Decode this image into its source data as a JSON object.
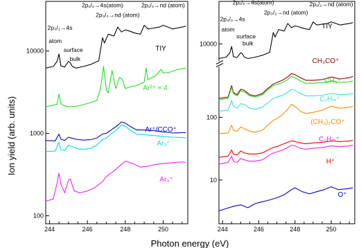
{
  "figure": {
    "xlabel": "Photon energy (eV)",
    "ylabel": "Ion yield (arb. units)"
  },
  "chart_data": [
    {
      "type": "line",
      "panel": "left",
      "yscale": "log",
      "xlim": [
        243.8,
        251.3
      ],
      "ylim": [
        80,
        40000
      ],
      "x_ticks": [
        244,
        246,
        248,
        250
      ],
      "x_tick_labels": [
        "244",
        "246",
        "248",
        "250"
      ],
      "y_ticks": [
        100,
        1000,
        10000
      ],
      "y_tick_labels": [
        "100",
        "1000",
        "10000"
      ],
      "annotations": [
        {
          "id": "l-ann-p12-4s",
          "text": "2p₁/₂→4s(atom)",
          "x": 246.8,
          "y": 34000
        },
        {
          "id": "l-ann-p32-4s",
          "text": "2p₃/₂→4s",
          "x": 244.55,
          "y": 18000
        },
        {
          "id": "l-ann-atom",
          "text": "atom",
          "x": 244.3,
          "y": 12500
        },
        {
          "id": "l-ann-surface",
          "text": "surface",
          "x": 245.25,
          "y": 9700
        },
        {
          "id": "l-ann-bulk",
          "text": "bulk",
          "x": 245.35,
          "y": 7600
        },
        {
          "id": "l-ann-p32-nd",
          "text": "2p₃/₂→nd (atom)",
          "x": 247.6,
          "y": 26000
        },
        {
          "id": "l-ann-p12-nd",
          "text": "2p₁/₂→nd (atom)",
          "x": 250.0,
          "y": 34000
        }
      ],
      "series": [
        {
          "name": "TIY",
          "color": "#000000",
          "x": [
            243.8,
            244.2,
            244.4,
            244.5,
            244.6,
            244.8,
            245.0,
            245.1,
            245.2,
            245.4,
            245.8,
            246.2,
            246.6,
            246.8,
            246.9,
            247.1,
            247.4,
            247.6,
            247.8,
            248.0,
            248.2,
            248.5,
            248.8,
            249.0,
            249.2,
            249.5,
            249.8,
            250.0,
            250.5,
            251.0,
            251.2
          ],
          "y": [
            6200,
            6500,
            7500,
            9200,
            6600,
            6400,
            7500,
            7200,
            6500,
            6200,
            6500,
            6900,
            7600,
            14500,
            12500,
            16000,
            15200,
            19500,
            17000,
            18000,
            17500,
            16500,
            16000,
            20500,
            18500,
            19000,
            19500,
            20500,
            18500,
            19500,
            20000
          ]
        },
        {
          "name": "Ar²⁺ × 4",
          "color": "#22dd22",
          "x": [
            243.8,
            244.4,
            244.5,
            244.6,
            244.7,
            245.0,
            245.5,
            246.0,
            246.5,
            246.7,
            246.85,
            247.0,
            247.1,
            247.3,
            247.5,
            247.7,
            247.85,
            248.0,
            248.3,
            248.6,
            249.0,
            249.1,
            249.2,
            249.6,
            249.9,
            250.0,
            250.3,
            250.7,
            251.2
          ],
          "y": [
            2100,
            2250,
            3000,
            2300,
            2200,
            2100,
            2150,
            2300,
            2500,
            3600,
            6500,
            3400,
            3100,
            5800,
            3500,
            4800,
            4500,
            3500,
            3700,
            3800,
            4200,
            6200,
            4500,
            5000,
            6000,
            5400,
            5500,
            5900,
            6200
          ]
        },
        {
          "name": "Ar⁺/CCO⁺",
          "color": "#0000bb",
          "x": [
            243.8,
            244.3,
            244.5,
            244.6,
            244.8,
            245.0,
            245.2,
            245.5,
            245.8,
            246.2,
            246.5,
            246.8,
            247.0,
            247.3,
            247.6,
            247.8,
            248.0,
            248.3,
            248.6,
            249.0,
            249.5,
            250.0,
            250.5,
            251.0,
            251.2
          ],
          "y": [
            820,
            810,
            980,
            850,
            820,
            900,
            870,
            840,
            830,
            840,
            880,
            980,
            1000,
            1120,
            1250,
            1380,
            1330,
            1200,
            1100,
            1100,
            1080,
            1040,
            1010,
            1020,
            1020
          ]
        },
        {
          "name": "Ar₂⁺",
          "color": "#00dddd",
          "x": [
            243.8,
            244.3,
            244.5,
            244.6,
            244.8,
            245.0,
            245.2,
            245.5,
            245.8,
            246.2,
            246.5,
            246.8,
            247.0,
            247.3,
            247.6,
            247.8,
            248.0,
            248.3,
            248.6,
            249.0,
            249.5,
            250.0,
            250.5,
            251.0,
            251.2
          ],
          "y": [
            600,
            610,
            780,
            640,
            620,
            720,
            690,
            650,
            640,
            660,
            720,
            840,
            880,
            1000,
            1130,
            1270,
            1220,
            1080,
            980,
            960,
            940,
            920,
            900,
            890,
            880
          ]
        },
        {
          "name": "Ar₃⁺",
          "color": "#ee22ee",
          "x": [
            243.8,
            244.2,
            244.4,
            244.5,
            244.6,
            244.8,
            245.0,
            245.1,
            245.3,
            245.6,
            246.0,
            246.4,
            246.8,
            247.0,
            247.4,
            247.8,
            248.0,
            248.4,
            248.8,
            249.2,
            249.6,
            250.0,
            250.5,
            251.0,
            251.2
          ],
          "y": [
            150,
            160,
            250,
            330,
            240,
            190,
            270,
            280,
            200,
            190,
            200,
            220,
            260,
            300,
            350,
            420,
            460,
            430,
            390,
            400,
            420,
            430,
            440,
            450,
            445
          ]
        }
      ]
    },
    {
      "type": "line",
      "panel": "right",
      "yscale": "log",
      "y_axis_break": true,
      "xlim": [
        243.8,
        251.3
      ],
      "ylim": [
        2,
        600
      ],
      "upper_ylim": [
        6000,
        40000
      ],
      "x_ticks": [
        244,
        246,
        248,
        250
      ],
      "x_tick_labels": [
        "244",
        "246",
        "248",
        "250"
      ],
      "y_ticks": [
        10,
        100
      ],
      "y_tick_labels": [
        "10",
        "100"
      ],
      "upper_y_ticks": [
        10000
      ],
      "upper_y_tick_labels": [
        "10000"
      ],
      "annotations": [
        {
          "id": "r-ann-p12-4s",
          "text": "2p₁/₂→4s(atom)",
          "x": 245.7,
          "y": 36000
        },
        {
          "id": "r-ann-p32-4s",
          "text": "2p₃/₂→4s",
          "x": 244.55,
          "y": 21000
        },
        {
          "id": "r-ann-atom",
          "text": "atom",
          "x": 244.3,
          "y": 15000
        },
        {
          "id": "r-ann-surface",
          "text": "surface",
          "x": 245.3,
          "y": 12000
        },
        {
          "id": "r-ann-bulk",
          "text": "bulk",
          "x": 245.4,
          "y": 9500
        },
        {
          "id": "r-ann-p32-nd",
          "text": "2p₃/₂→nd (atom)",
          "x": 247.5,
          "y": 26000
        },
        {
          "id": "r-ann-p12-nd",
          "text": "2p₁/₂→nd (atom)",
          "x": 250.0,
          "y": 34000
        }
      ],
      "series": [
        {
          "name": "TIY",
          "color": "#000000",
          "panel_part": "upper",
          "x": [
            243.8,
            244.2,
            244.4,
            244.5,
            244.6,
            244.8,
            245.0,
            245.1,
            245.2,
            245.4,
            245.8,
            246.2,
            246.6,
            246.8,
            246.9,
            247.1,
            247.4,
            247.6,
            247.8,
            248.0,
            248.2,
            248.5,
            248.8,
            249.0,
            249.2,
            249.5,
            249.8,
            250.0,
            250.5,
            251.0,
            251.2
          ],
          "y": [
            6200,
            6500,
            7500,
            9200,
            6600,
            6400,
            7500,
            7200,
            6500,
            6200,
            6500,
            6900,
            7600,
            14500,
            12500,
            16000,
            15200,
            19500,
            17000,
            18000,
            17500,
            16500,
            16000,
            20500,
            18500,
            19000,
            19500,
            20500,
            18500,
            19500,
            20000
          ]
        },
        {
          "name": "CH₃CO⁺",
          "color": "#880000",
          "x": [
            243.8,
            244.3,
            244.5,
            244.6,
            244.8,
            245.0,
            245.2,
            245.5,
            245.8,
            246.2,
            246.5,
            246.8,
            247.0,
            247.3,
            247.6,
            247.8,
            248.0,
            248.3,
            248.6,
            249.0,
            249.5,
            250.0,
            250.5,
            251.0,
            251.2
          ],
          "y": [
            200,
            210,
            320,
            250,
            230,
            280,
            270,
            230,
            220,
            240,
            290,
            340,
            360,
            390,
            440,
            500,
            480,
            430,
            390,
            390,
            400,
            440,
            410,
            430,
            450
          ]
        },
        {
          "name": "CH₃⁺",
          "color": "#22dd22",
          "x": [
            243.8,
            244.3,
            244.5,
            244.6,
            244.8,
            245.0,
            245.2,
            245.5,
            245.8,
            246.2,
            246.5,
            246.8,
            247.0,
            247.3,
            247.6,
            247.8,
            248.0,
            248.3,
            248.6,
            249.0,
            249.5,
            250.0,
            250.5,
            251.0,
            251.2
          ],
          "y": [
            190,
            200,
            300,
            240,
            220,
            265,
            255,
            220,
            210,
            230,
            275,
            320,
            335,
            360,
            400,
            450,
            430,
            380,
            350,
            350,
            360,
            380,
            360,
            370,
            380
          ]
        },
        {
          "name": "C₂Hₘ⁺",
          "color": "#33dddd",
          "x": [
            243.8,
            244.3,
            244.5,
            244.6,
            244.8,
            245.0,
            245.2,
            245.5,
            245.8,
            246.2,
            246.5,
            246.8,
            247.0,
            247.3,
            247.6,
            247.8,
            248.0,
            248.3,
            248.6,
            249.0,
            249.5,
            250.0,
            250.5,
            251.0,
            251.2
          ],
          "y": [
            125,
            130,
            185,
            150,
            140,
            165,
            160,
            140,
            135,
            145,
            170,
            200,
            210,
            225,
            250,
            280,
            270,
            240,
            220,
            220,
            225,
            240,
            230,
            235,
            240
          ]
        },
        {
          "name": "(CH₃)₂CO⁺",
          "color": "#ff8800",
          "x": [
            243.8,
            244.3,
            244.5,
            244.6,
            244.8,
            245.0,
            245.2,
            245.5,
            245.8,
            246.2,
            246.5,
            246.8,
            247.0,
            247.3,
            247.6,
            247.8,
            248.0,
            248.3,
            248.6,
            249.0,
            249.5,
            250.0,
            250.5,
            251.0,
            251.2
          ],
          "y": [
            55,
            56,
            75,
            62,
            60,
            70,
            66,
            60,
            58,
            62,
            75,
            90,
            95,
            110,
            135,
            160,
            150,
            125,
            115,
            120,
            130,
            150,
            140,
            145,
            150
          ]
        },
        {
          "name": "H⁺",
          "color": "#ee0000",
          "x": [
            243.8,
            244.3,
            244.5,
            244.6,
            244.8,
            245.0,
            245.2,
            245.5,
            245.8,
            246.2,
            246.5,
            246.8,
            247.0,
            247.3,
            247.6,
            247.8,
            248.0,
            248.3,
            248.6,
            249.0,
            249.5,
            250.0,
            250.5,
            251.0,
            251.2
          ],
          "y": [
            23,
            24,
            30,
            26,
            25,
            29,
            27,
            26,
            26,
            27,
            30,
            33,
            34,
            37,
            40,
            42,
            41,
            39,
            38,
            39,
            40,
            42,
            41,
            42,
            43
          ]
        },
        {
          "name": "C₂Hₘ⁺",
          "color": "#ee22ee",
          "x": [
            243.8,
            244.3,
            244.5,
            244.6,
            244.8,
            245.0,
            245.2,
            245.5,
            245.8,
            246.2,
            246.5,
            246.8,
            247.0,
            247.3,
            247.6,
            247.8,
            248.0,
            248.3,
            248.6,
            249.0,
            249.5,
            250.0,
            250.5,
            251.0,
            251.2
          ],
          "y": [
            18,
            19,
            24,
            20,
            19,
            22,
            21,
            20,
            20,
            21,
            24,
            27,
            28,
            30,
            33,
            36,
            35,
            32,
            31,
            32,
            33,
            35,
            34,
            35,
            36
          ]
        },
        {
          "name": "O⁺",
          "color": "#0000cc",
          "x": [
            243.8,
            244.2,
            244.6,
            245.0,
            245.4,
            245.8,
            246.2,
            246.6,
            247.0,
            247.4,
            247.8,
            248.0,
            248.4,
            248.8,
            249.2,
            249.6,
            250.0,
            250.4,
            250.8,
            251.2
          ],
          "y": [
            3.2,
            3.5,
            3.8,
            4.0,
            3.6,
            4.2,
            4.5,
            4.8,
            5.2,
            5.8,
            7.0,
            7.5,
            6.5,
            6.0,
            6.5,
            7.0,
            7.8,
            7.0,
            7.2,
            7.5
          ]
        }
      ]
    }
  ]
}
